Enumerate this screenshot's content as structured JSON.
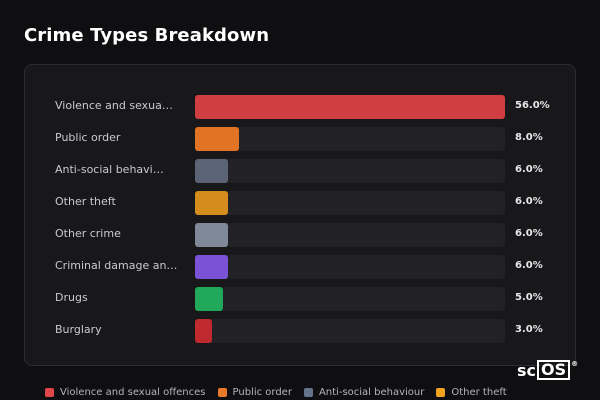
{
  "title": "Crime Types Breakdown",
  "chart_data": {
    "type": "bar",
    "orientation": "horizontal",
    "categories": [
      "Violence and sexua…",
      "Public order",
      "Anti-social behavi…",
      "Other theft",
      "Other crime",
      "Criminal damage an…",
      "Drugs",
      "Burglary"
    ],
    "values": [
      56.0,
      8.0,
      6.0,
      6.0,
      6.0,
      6.0,
      5.0,
      3.0
    ],
    "value_labels": [
      "56.0%",
      "8.0%",
      "6.0%",
      "6.0%",
      "6.0%",
      "6.0%",
      "5.0%",
      "3.0%"
    ],
    "colors": [
      "#d03e44",
      "#e07324",
      "#5b6476",
      "#d48c1c",
      "#808999",
      "#7b52d6",
      "#22a85a",
      "#c0292e"
    ],
    "xlim": [
      0,
      56
    ],
    "grid": false,
    "legend_placement": "bottom",
    "legend": [
      {
        "label": "Violence and sexual offences",
        "color": "#e0474b"
      },
      {
        "label": "Public order",
        "color": "#e97a2c"
      },
      {
        "label": "Anti-social behaviour",
        "color": "#64748b"
      },
      {
        "label": "Other theft",
        "color": "#f2a31e"
      }
    ]
  },
  "logo": {
    "text_left": "sc",
    "text_box": "OS",
    "mark": "®"
  }
}
